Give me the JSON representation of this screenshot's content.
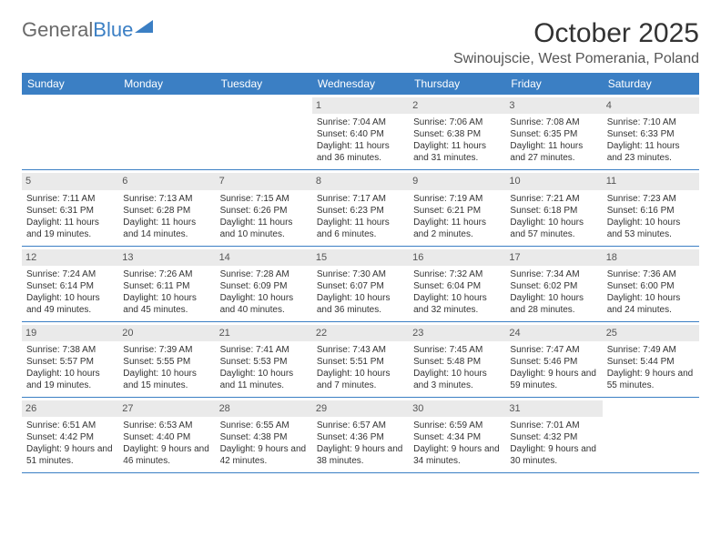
{
  "logo": {
    "text1": "General",
    "text2": "Blue"
  },
  "title": "October 2025",
  "location": "Swinoujscie, West Pomerania, Poland",
  "day_headers": [
    "Sunday",
    "Monday",
    "Tuesday",
    "Wednesday",
    "Thursday",
    "Friday",
    "Saturday"
  ],
  "colors": {
    "header_bg": "#3b7fc4",
    "header_text": "#ffffff",
    "daynum_bg": "#eaeaea",
    "border": "#3b7fc4",
    "logo_gray": "#6a6a6a",
    "logo_blue": "#3b7fc4",
    "body_text": "#333333"
  },
  "weeks": [
    [
      {
        "day": "",
        "sunrise": "",
        "sunset": "",
        "daylight": ""
      },
      {
        "day": "",
        "sunrise": "",
        "sunset": "",
        "daylight": ""
      },
      {
        "day": "",
        "sunrise": "",
        "sunset": "",
        "daylight": ""
      },
      {
        "day": "1",
        "sunrise": "Sunrise: 7:04 AM",
        "sunset": "Sunset: 6:40 PM",
        "daylight": "Daylight: 11 hours and 36 minutes."
      },
      {
        "day": "2",
        "sunrise": "Sunrise: 7:06 AM",
        "sunset": "Sunset: 6:38 PM",
        "daylight": "Daylight: 11 hours and 31 minutes."
      },
      {
        "day": "3",
        "sunrise": "Sunrise: 7:08 AM",
        "sunset": "Sunset: 6:35 PM",
        "daylight": "Daylight: 11 hours and 27 minutes."
      },
      {
        "day": "4",
        "sunrise": "Sunrise: 7:10 AM",
        "sunset": "Sunset: 6:33 PM",
        "daylight": "Daylight: 11 hours and 23 minutes."
      }
    ],
    [
      {
        "day": "5",
        "sunrise": "Sunrise: 7:11 AM",
        "sunset": "Sunset: 6:31 PM",
        "daylight": "Daylight: 11 hours and 19 minutes."
      },
      {
        "day": "6",
        "sunrise": "Sunrise: 7:13 AM",
        "sunset": "Sunset: 6:28 PM",
        "daylight": "Daylight: 11 hours and 14 minutes."
      },
      {
        "day": "7",
        "sunrise": "Sunrise: 7:15 AM",
        "sunset": "Sunset: 6:26 PM",
        "daylight": "Daylight: 11 hours and 10 minutes."
      },
      {
        "day": "8",
        "sunrise": "Sunrise: 7:17 AM",
        "sunset": "Sunset: 6:23 PM",
        "daylight": "Daylight: 11 hours and 6 minutes."
      },
      {
        "day": "9",
        "sunrise": "Sunrise: 7:19 AM",
        "sunset": "Sunset: 6:21 PM",
        "daylight": "Daylight: 11 hours and 2 minutes."
      },
      {
        "day": "10",
        "sunrise": "Sunrise: 7:21 AM",
        "sunset": "Sunset: 6:18 PM",
        "daylight": "Daylight: 10 hours and 57 minutes."
      },
      {
        "day": "11",
        "sunrise": "Sunrise: 7:23 AM",
        "sunset": "Sunset: 6:16 PM",
        "daylight": "Daylight: 10 hours and 53 minutes."
      }
    ],
    [
      {
        "day": "12",
        "sunrise": "Sunrise: 7:24 AM",
        "sunset": "Sunset: 6:14 PM",
        "daylight": "Daylight: 10 hours and 49 minutes."
      },
      {
        "day": "13",
        "sunrise": "Sunrise: 7:26 AM",
        "sunset": "Sunset: 6:11 PM",
        "daylight": "Daylight: 10 hours and 45 minutes."
      },
      {
        "day": "14",
        "sunrise": "Sunrise: 7:28 AM",
        "sunset": "Sunset: 6:09 PM",
        "daylight": "Daylight: 10 hours and 40 minutes."
      },
      {
        "day": "15",
        "sunrise": "Sunrise: 7:30 AM",
        "sunset": "Sunset: 6:07 PM",
        "daylight": "Daylight: 10 hours and 36 minutes."
      },
      {
        "day": "16",
        "sunrise": "Sunrise: 7:32 AM",
        "sunset": "Sunset: 6:04 PM",
        "daylight": "Daylight: 10 hours and 32 minutes."
      },
      {
        "day": "17",
        "sunrise": "Sunrise: 7:34 AM",
        "sunset": "Sunset: 6:02 PM",
        "daylight": "Daylight: 10 hours and 28 minutes."
      },
      {
        "day": "18",
        "sunrise": "Sunrise: 7:36 AM",
        "sunset": "Sunset: 6:00 PM",
        "daylight": "Daylight: 10 hours and 24 minutes."
      }
    ],
    [
      {
        "day": "19",
        "sunrise": "Sunrise: 7:38 AM",
        "sunset": "Sunset: 5:57 PM",
        "daylight": "Daylight: 10 hours and 19 minutes."
      },
      {
        "day": "20",
        "sunrise": "Sunrise: 7:39 AM",
        "sunset": "Sunset: 5:55 PM",
        "daylight": "Daylight: 10 hours and 15 minutes."
      },
      {
        "day": "21",
        "sunrise": "Sunrise: 7:41 AM",
        "sunset": "Sunset: 5:53 PM",
        "daylight": "Daylight: 10 hours and 11 minutes."
      },
      {
        "day": "22",
        "sunrise": "Sunrise: 7:43 AM",
        "sunset": "Sunset: 5:51 PM",
        "daylight": "Daylight: 10 hours and 7 minutes."
      },
      {
        "day": "23",
        "sunrise": "Sunrise: 7:45 AM",
        "sunset": "Sunset: 5:48 PM",
        "daylight": "Daylight: 10 hours and 3 minutes."
      },
      {
        "day": "24",
        "sunrise": "Sunrise: 7:47 AM",
        "sunset": "Sunset: 5:46 PM",
        "daylight": "Daylight: 9 hours and 59 minutes."
      },
      {
        "day": "25",
        "sunrise": "Sunrise: 7:49 AM",
        "sunset": "Sunset: 5:44 PM",
        "daylight": "Daylight: 9 hours and 55 minutes."
      }
    ],
    [
      {
        "day": "26",
        "sunrise": "Sunrise: 6:51 AM",
        "sunset": "Sunset: 4:42 PM",
        "daylight": "Daylight: 9 hours and 51 minutes."
      },
      {
        "day": "27",
        "sunrise": "Sunrise: 6:53 AM",
        "sunset": "Sunset: 4:40 PM",
        "daylight": "Daylight: 9 hours and 46 minutes."
      },
      {
        "day": "28",
        "sunrise": "Sunrise: 6:55 AM",
        "sunset": "Sunset: 4:38 PM",
        "daylight": "Daylight: 9 hours and 42 minutes."
      },
      {
        "day": "29",
        "sunrise": "Sunrise: 6:57 AM",
        "sunset": "Sunset: 4:36 PM",
        "daylight": "Daylight: 9 hours and 38 minutes."
      },
      {
        "day": "30",
        "sunrise": "Sunrise: 6:59 AM",
        "sunset": "Sunset: 4:34 PM",
        "daylight": "Daylight: 9 hours and 34 minutes."
      },
      {
        "day": "31",
        "sunrise": "Sunrise: 7:01 AM",
        "sunset": "Sunset: 4:32 PM",
        "daylight": "Daylight: 9 hours and 30 minutes."
      },
      {
        "day": "",
        "sunrise": "",
        "sunset": "",
        "daylight": ""
      }
    ]
  ]
}
